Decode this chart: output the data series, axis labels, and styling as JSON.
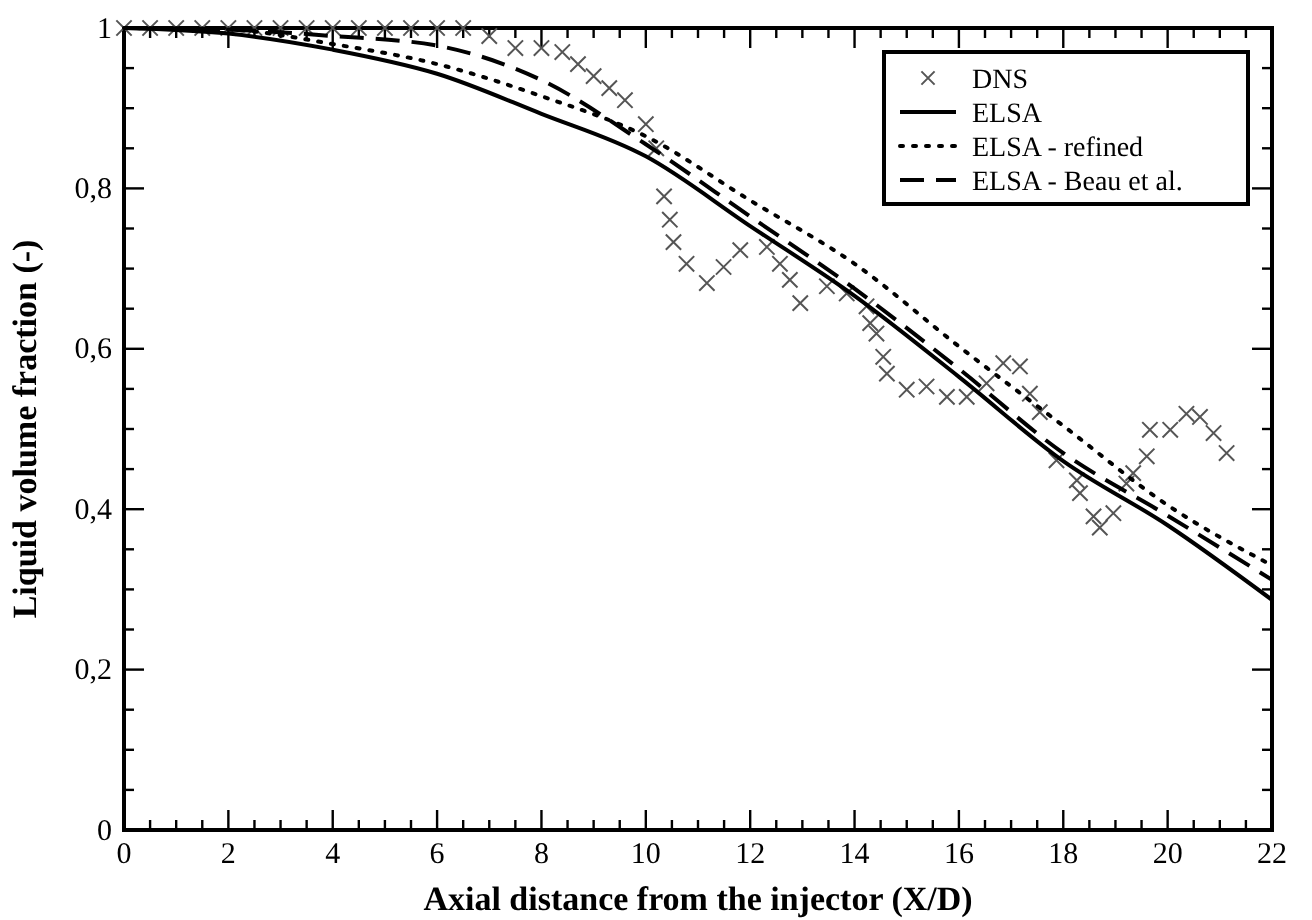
{
  "chart_data": {
    "type": "line",
    "xlabel": "Axial distance from the injector (X/D)",
    "ylabel": "Liquid volume fraction (-)",
    "xlim": [
      0,
      22
    ],
    "ylim": [
      0,
      1
    ],
    "xticks": [
      0,
      {
        "value": 0.5,
        "label": null
      },
      {
        "value": 1,
        "label": null
      },
      {
        "value": 1.5,
        "label": null
      },
      2,
      {
        "value": 2.5,
        "label": null
      },
      {
        "value": 3,
        "label": null
      },
      {
        "value": 3.5,
        "label": null
      },
      4,
      {
        "value": 4.5,
        "label": null
      },
      {
        "value": 5,
        "label": null
      },
      {
        "value": 5.5,
        "label": null
      },
      6,
      {
        "value": 6.5,
        "label": null
      },
      {
        "value": 7,
        "label": null
      },
      {
        "value": 7.5,
        "label": null
      },
      8,
      {
        "value": 8.5,
        "label": null
      },
      {
        "value": 9,
        "label": null
      },
      {
        "value": 9.5,
        "label": null
      },
      10,
      {
        "value": 10.5,
        "label": null
      },
      {
        "value": 11,
        "label": null
      },
      {
        "value": 11.5,
        "label": null
      },
      12,
      {
        "value": 12.5,
        "label": null
      },
      {
        "value": 13,
        "label": null
      },
      {
        "value": 13.5,
        "label": null
      },
      14,
      {
        "value": 14.5,
        "label": null
      },
      {
        "value": 15,
        "label": null
      },
      {
        "value": 15.5,
        "label": null
      },
      16,
      {
        "value": 16.5,
        "label": null
      },
      {
        "value": 17,
        "label": null
      },
      {
        "value": 17.5,
        "label": null
      },
      18,
      {
        "value": 18.5,
        "label": null
      },
      {
        "value": 19,
        "label": null
      },
      {
        "value": 19.5,
        "label": null
      },
      20,
      {
        "value": 20.5,
        "label": null
      },
      {
        "value": 21,
        "label": null
      },
      {
        "value": 21.5,
        "label": null
      },
      22
    ],
    "yticks": [
      0,
      {
        "value": 0.05,
        "label": null
      },
      {
        "value": 0.1,
        "label": null
      },
      {
        "value": 0.15,
        "label": null
      },
      {
        "value": 0.2,
        "label": "0,2"
      },
      {
        "value": 0.25,
        "label": null
      },
      {
        "value": 0.3,
        "label": null
      },
      {
        "value": 0.35,
        "label": null
      },
      {
        "value": 0.4,
        "label": "0,4"
      },
      {
        "value": 0.45,
        "label": null
      },
      {
        "value": 0.5,
        "label": null
      },
      {
        "value": 0.55,
        "label": null
      },
      {
        "value": 0.6,
        "label": "0,6"
      },
      {
        "value": 0.65,
        "label": null
      },
      {
        "value": 0.7,
        "label": null
      },
      {
        "value": 0.75,
        "label": null
      },
      {
        "value": 0.8,
        "label": "0,8"
      },
      {
        "value": 0.85,
        "label": null
      },
      {
        "value": 0.9,
        "label": null
      },
      {
        "value": 0.95,
        "label": null
      },
      1
    ],
    "grid": false,
    "legend": "top right",
    "series": [
      {
        "name": "DNS",
        "type": "scatter",
        "marker": "cross",
        "color": "#555555",
        "x": [
          0,
          0.5,
          1,
          1.5,
          2,
          2.5,
          3,
          3.5,
          4,
          4.5,
          5,
          5.5,
          6,
          6.5,
          7,
          7.5,
          8,
          8.4,
          8.7,
          9,
          9.3,
          9.6,
          10,
          10.2,
          10.35,
          10.46,
          10.53,
          10.78,
          11.17,
          11.49,
          11.81,
          12.32,
          12.57,
          12.76,
          12.96,
          13.47,
          13.85,
          14.23,
          14.3,
          14.42,
          14.55,
          14.62,
          15,
          15.38,
          15.77,
          16.15,
          16.53,
          16.85,
          17.17,
          17.36,
          17.55,
          17.87,
          18.26,
          18.32,
          18.58,
          18.7,
          18.96,
          19.21,
          19.34,
          19.6,
          19.66,
          20.05,
          20.36,
          20.62,
          20.88,
          21.13
        ],
        "values": [
          1,
          1,
          1,
          1,
          1,
          1,
          1,
          1,
          1,
          1,
          1,
          1,
          1,
          1,
          0.99,
          0.975,
          0.975,
          0.97,
          0.955,
          0.94,
          0.925,
          0.91,
          0.88,
          0.85,
          0.79,
          0.761,
          0.733,
          0.706,
          0.682,
          0.702,
          0.723,
          0.727,
          0.706,
          0.686,
          0.657,
          0.678,
          0.669,
          0.653,
          0.632,
          0.619,
          0.59,
          0.569,
          0.549,
          0.553,
          0.54,
          0.54,
          0.557,
          0.582,
          0.578,
          0.544,
          0.521,
          0.461,
          0.436,
          0.42,
          0.391,
          0.377,
          0.395,
          0.432,
          0.445,
          0.466,
          0.499,
          0.499,
          0.519,
          0.515,
          0.495,
          0.47
        ]
      },
      {
        "name": "ELSA",
        "line_style": "solid",
        "color": "#000000",
        "x": [
          0,
          2,
          4,
          6,
          8,
          10,
          12,
          14,
          16,
          18,
          20,
          22
        ],
        "values": [
          1,
          0.993,
          0.973,
          0.943,
          0.893,
          0.84,
          0.753,
          0.666,
          0.565,
          0.46,
          0.38,
          0.287
        ]
      },
      {
        "name": "ELSA - refined",
        "line_style": "dotted",
        "color": "#000000",
        "x": [
          0,
          2,
          4,
          6,
          8,
          10,
          12,
          14,
          16,
          18,
          20,
          22
        ],
        "values": [
          1,
          0.998,
          0.98,
          0.955,
          0.915,
          0.865,
          0.785,
          0.706,
          0.603,
          0.504,
          0.405,
          0.33
        ]
      },
      {
        "name": "ELSA - Beau et al.",
        "line_style": "dashed",
        "color": "#000000",
        "x": [
          0,
          2,
          4,
          6,
          8,
          10,
          12,
          14,
          16,
          18,
          20,
          22
        ],
        "values": [
          1,
          0.998,
          0.99,
          0.978,
          0.935,
          0.855,
          0.765,
          0.675,
          0.575,
          0.47,
          0.392,
          0.312
        ]
      }
    ]
  }
}
